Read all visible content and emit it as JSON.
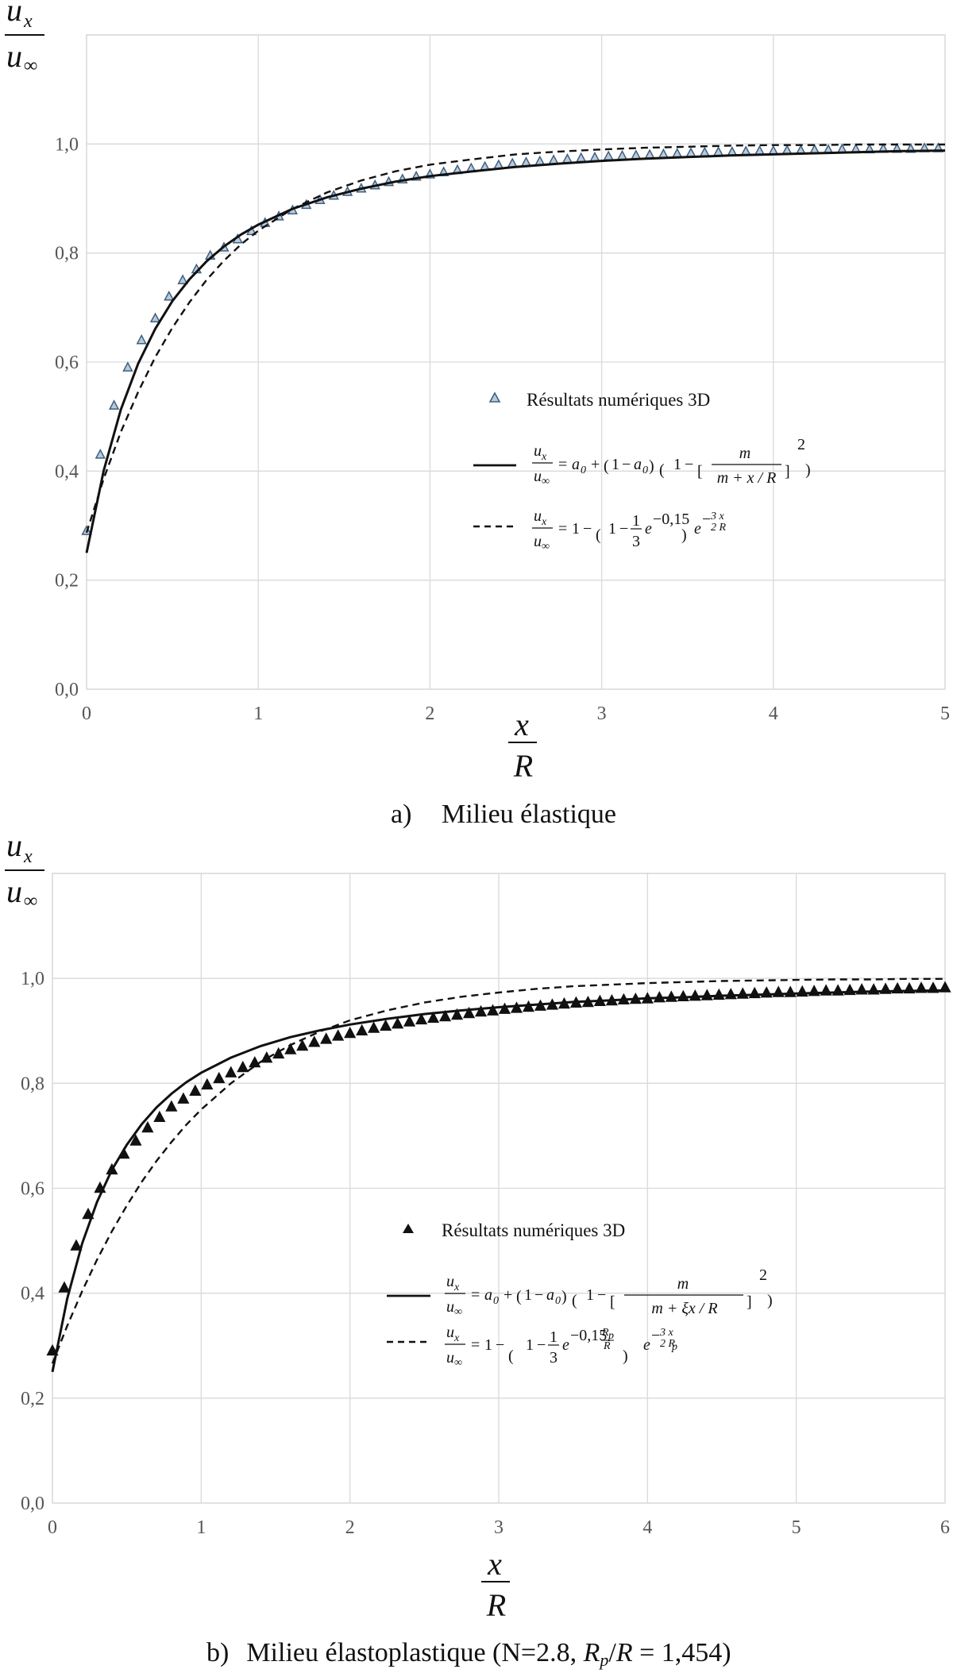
{
  "chart_data": [
    {
      "type": "scatter",
      "panel_caption": "a)   Milieu élastique",
      "ylabel": "u_x / u_∞",
      "xlabel": "x / R",
      "xlim": [
        0,
        5
      ],
      "ylim": [
        0,
        1.0
      ],
      "x_ticks": [
        "0",
        "1",
        "2",
        "3",
        "4",
        "5"
      ],
      "y_ticks": [
        "0,0",
        "0,2",
        "0,4",
        "0,6",
        "0,8",
        "1,0"
      ],
      "grid": true,
      "legend_position": "center-right",
      "series": [
        {
          "name": "Résultats numériques 3D",
          "style": "hollow-triangle",
          "color": "#5b7b9a",
          "x": [
            0.0,
            0.08,
            0.16,
            0.24,
            0.32,
            0.4,
            0.48,
            0.56,
            0.64,
            0.72,
            0.8,
            0.88,
            0.96,
            1.04,
            1.12,
            1.2,
            1.28,
            1.36,
            1.44,
            1.52,
            1.6,
            1.68,
            1.76,
            1.84,
            1.92,
            2.0,
            2.08,
            2.16,
            2.24,
            2.32,
            2.4,
            2.48,
            2.56,
            2.64,
            2.72,
            2.8,
            2.88,
            2.96,
            3.04,
            3.12,
            3.2,
            3.28,
            3.36,
            3.44,
            3.52,
            3.6,
            3.68,
            3.76,
            3.84,
            3.92,
            4.0,
            4.08,
            4.16,
            4.24,
            4.32,
            4.4,
            4.48,
            4.56,
            4.64,
            4.72,
            4.8,
            4.88,
            4.96
          ],
          "y": [
            0.29,
            0.43,
            0.52,
            0.59,
            0.64,
            0.68,
            0.72,
            0.75,
            0.77,
            0.795,
            0.81,
            0.825,
            0.84,
            0.855,
            0.867,
            0.878,
            0.888,
            0.897,
            0.905,
            0.912,
            0.918,
            0.924,
            0.93,
            0.935,
            0.94,
            0.944,
            0.948,
            0.952,
            0.955,
            0.958,
            0.961,
            0.964,
            0.966,
            0.968,
            0.97,
            0.972,
            0.974,
            0.975,
            0.977,
            0.978,
            0.979,
            0.98,
            0.981,
            0.982,
            0.983,
            0.984,
            0.985,
            0.985,
            0.986,
            0.987,
            0.987,
            0.988,
            0.988,
            0.989,
            0.989,
            0.99,
            0.99,
            0.99,
            0.991,
            0.991,
            0.991,
            0.992,
            0.992
          ]
        },
        {
          "name": "u_x/u_∞ = a_0 + (1 − a_0)(1 − [m/(m + x/R)]^2)",
          "style": "solid",
          "color": "#111111",
          "x": [
            0.0,
            0.1,
            0.2,
            0.3,
            0.4,
            0.5,
            0.6,
            0.7,
            0.8,
            0.9,
            1.0,
            1.2,
            1.4,
            1.6,
            1.8,
            2.0,
            2.25,
            2.5,
            2.75,
            3.0,
            3.25,
            3.5,
            3.75,
            4.0,
            4.25,
            4.5,
            4.75,
            5.0
          ],
          "y": [
            0.25,
            0.401,
            0.513,
            0.597,
            0.661,
            0.712,
            0.752,
            0.785,
            0.812,
            0.834,
            0.852,
            0.881,
            0.902,
            0.918,
            0.931,
            0.941,
            0.95,
            0.958,
            0.964,
            0.969,
            0.973,
            0.976,
            0.979,
            0.981,
            0.983,
            0.985,
            0.987,
            0.988
          ]
        },
        {
          "name": "u_x/u_∞ = 1 − (1 − (1/3)e^(−0,15)) e^(−(3/2)(x/R))",
          "style": "dashed",
          "color": "#111111",
          "x": [
            0.0,
            0.1,
            0.2,
            0.3,
            0.4,
            0.5,
            0.6,
            0.7,
            0.8,
            0.9,
            1.0,
            1.2,
            1.4,
            1.6,
            1.8,
            2.0,
            2.25,
            2.5,
            2.75,
            3.0,
            3.25,
            3.5,
            3.75,
            4.0,
            4.25,
            4.5,
            4.75,
            5.0
          ],
          "y": [
            0.287,
            0.386,
            0.472,
            0.545,
            0.609,
            0.663,
            0.71,
            0.751,
            0.786,
            0.816,
            0.841,
            0.881,
            0.911,
            0.933,
            0.95,
            0.962,
            0.972,
            0.981,
            0.986,
            0.99,
            0.993,
            0.995,
            0.997,
            0.998,
            0.998,
            0.999,
            0.999,
            0.999
          ]
        }
      ]
    },
    {
      "type": "scatter",
      "panel_caption": "b)   Milieu élastoplastique (N=2.8, R_p/R = 1,454)",
      "ylabel": "u_x / u_∞",
      "xlabel": "x / R",
      "xlim": [
        0,
        6
      ],
      "ylim": [
        0,
        1.0
      ],
      "x_ticks": [
        "0",
        "1",
        "2",
        "3",
        "4",
        "5",
        "6"
      ],
      "y_ticks": [
        "0,0",
        "0,2",
        "0,4",
        "0,6",
        "0,8",
        "1,0"
      ],
      "grid": true,
      "legend_position": "center-right",
      "series": [
        {
          "name": "Résultats numériques 3D",
          "style": "filled-triangle",
          "color": "#111111",
          "x": [
            0.0,
            0.08,
            0.16,
            0.24,
            0.32,
            0.4,
            0.48,
            0.56,
            0.64,
            0.72,
            0.8,
            0.88,
            0.96,
            1.04,
            1.12,
            1.2,
            1.28,
            1.36,
            1.44,
            1.52,
            1.6,
            1.68,
            1.76,
            1.84,
            1.92,
            2.0,
            2.08,
            2.16,
            2.24,
            2.32,
            2.4,
            2.48,
            2.56,
            2.64,
            2.72,
            2.8,
            2.88,
            2.96,
            3.04,
            3.12,
            3.2,
            3.28,
            3.36,
            3.44,
            3.52,
            3.6,
            3.68,
            3.76,
            3.84,
            3.92,
            4.0,
            4.08,
            4.16,
            4.24,
            4.32,
            4.4,
            4.48,
            4.56,
            4.64,
            4.72,
            4.8,
            4.88,
            4.96,
            5.04,
            5.12,
            5.2,
            5.28,
            5.36,
            5.44,
            5.52,
            5.6,
            5.68,
            5.76,
            5.84,
            5.92,
            6.0
          ],
          "y": [
            0.29,
            0.41,
            0.49,
            0.55,
            0.6,
            0.635,
            0.665,
            0.69,
            0.715,
            0.735,
            0.755,
            0.77,
            0.785,
            0.797,
            0.809,
            0.82,
            0.83,
            0.839,
            0.848,
            0.856,
            0.864,
            0.871,
            0.878,
            0.884,
            0.89,
            0.895,
            0.9,
            0.905,
            0.909,
            0.913,
            0.917,
            0.921,
            0.924,
            0.927,
            0.93,
            0.933,
            0.936,
            0.938,
            0.941,
            0.943,
            0.945,
            0.947,
            0.949,
            0.951,
            0.953,
            0.954,
            0.956,
            0.957,
            0.959,
            0.96,
            0.961,
            0.963,
            0.964,
            0.965,
            0.966,
            0.967,
            0.968,
            0.969,
            0.97,
            0.971,
            0.972,
            0.973,
            0.973,
            0.974,
            0.975,
            0.976,
            0.976,
            0.977,
            0.978,
            0.978,
            0.979,
            0.98,
            0.98,
            0.981,
            0.981,
            0.982
          ]
        },
        {
          "name": "u_x/u_∞ = a_0 + (1 − a_0)(1 − [m/(m + ξx/R)]^2)",
          "style": "solid",
          "color": "#111111",
          "x": [
            0.0,
            0.1,
            0.2,
            0.3,
            0.4,
            0.5,
            0.6,
            0.7,
            0.8,
            0.9,
            1.0,
            1.2,
            1.4,
            1.6,
            1.8,
            2.0,
            2.25,
            2.5,
            2.75,
            3.0,
            3.25,
            3.5,
            3.75,
            4.0,
            4.25,
            4.5,
            4.75,
            5.0,
            5.25,
            5.5,
            5.75,
            6.0
          ],
          "y": [
            0.25,
            0.39,
            0.495,
            0.574,
            0.635,
            0.683,
            0.722,
            0.754,
            0.78,
            0.802,
            0.82,
            0.849,
            0.871,
            0.888,
            0.901,
            0.912,
            0.923,
            0.932,
            0.939,
            0.945,
            0.95,
            0.955,
            0.958,
            0.962,
            0.964,
            0.967,
            0.969,
            0.971,
            0.973,
            0.975,
            0.976,
            0.977
          ]
        },
        {
          "name": "u_x/u_∞ = 1 − (1 − (1/3)e^(−0,15·R_p/R)) e^(−(3/2)(x/R_p))",
          "style": "dashed",
          "color": "#111111",
          "x": [
            0.0,
            0.1,
            0.2,
            0.3,
            0.4,
            0.5,
            0.6,
            0.7,
            0.8,
            0.9,
            1.0,
            1.2,
            1.4,
            1.6,
            1.8,
            2.0,
            2.25,
            2.5,
            2.75,
            3.0,
            3.25,
            3.5,
            3.75,
            4.0,
            4.25,
            4.5,
            4.75,
            5.0,
            5.25,
            5.5,
            5.75,
            6.0
          ],
          "y": [
            0.266,
            0.338,
            0.404,
            0.464,
            0.518,
            0.567,
            0.612,
            0.652,
            0.688,
            0.721,
            0.75,
            0.8,
            0.841,
            0.873,
            0.899,
            0.92,
            0.939,
            0.954,
            0.965,
            0.973,
            0.98,
            0.985,
            0.988,
            0.991,
            0.993,
            0.995,
            0.996,
            0.997,
            0.998,
            0.998,
            0.999,
            0.999
          ]
        }
      ]
    }
  ],
  "panels": [
    {
      "caption_letter": "a)",
      "caption_text": "Milieu élastique",
      "legend_numeric": "Résultats numériques 3D"
    },
    {
      "caption_letter": "b)",
      "caption_text_1": "Milieu élastoplastique (N=2.8, ",
      "caption_rp_main": "R",
      "caption_rp_sub": "p",
      "caption_text_2": "/",
      "caption_r": "R",
      "caption_text_3": " = 1,454)",
      "legend_numeric": "Résultats numériques 3D"
    }
  ],
  "axis_symbols": {
    "u": "u",
    "x_sub": "x",
    "inf_sub": "∞",
    "x": "x",
    "R": "R"
  },
  "equations": {
    "a0": "a",
    "zero": "0",
    "m": "m",
    "eq_sign": "=",
    "plus": "+",
    "minus": "−",
    "one": "1",
    "three": "3",
    "e": "e",
    "two": "2",
    "xi": "ξ",
    "den_a": "m + x / R",
    "den_b": "m + ξx / R",
    "exp_a_small": "−0,15",
    "exp_a_tail": "3 x",
    "exp_a_tail_den": "2 R",
    "exp_b_small": "−0,15",
    "exp_b_Rp": "R",
    "exp_b_p": "p",
    "exp_b_R": "R",
    "exp_b_tail": "3  x",
    "exp_b_tail_den": "2 R"
  },
  "colors": {
    "grid": "#d9d9d9",
    "marker_a": "#5b7b9a",
    "marker_b": "#111111",
    "line": "#111111"
  }
}
